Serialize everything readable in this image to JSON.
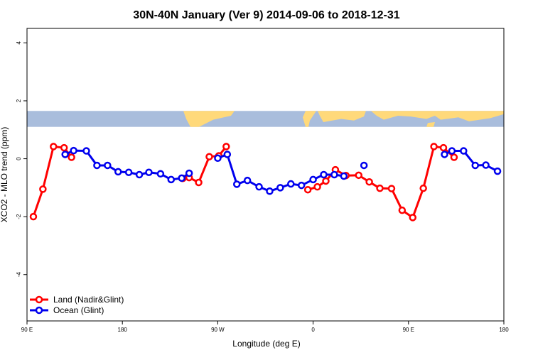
{
  "chart_data": {
    "type": "line",
    "title": "30N-40N January (Ver 9)   2014-09-06 to 2018-12-31",
    "xlabel": "Longitude (deg E)",
    "ylabel": "XCO2 - MLO trend (ppm)",
    "xlim": [
      90,
      540
    ],
    "ylim": [
      -5.6,
      4.5
    ],
    "x_ticks": [
      {
        "value": 90,
        "label": "90 E"
      },
      {
        "value": 180,
        "label": "180"
      },
      {
        "value": 270,
        "label": "90 W"
      },
      {
        "value": 360,
        "label": "0"
      },
      {
        "value": 450,
        "label": "90 E"
      },
      {
        "value": 540,
        "label": "180"
      }
    ],
    "y_ticks": [
      {
        "value": -4,
        "label": "-4"
      },
      {
        "value": -2,
        "label": "-2"
      },
      {
        "value": 0,
        "label": "0"
      },
      {
        "value": 2,
        "label": "2"
      },
      {
        "value": 4,
        "label": "4"
      }
    ],
    "grid": false,
    "legend_position": "bottom-left",
    "background_map": {
      "description_colors": {
        "land": "#FFD97A",
        "ocean": "#A9BDDC"
      },
      "y_range": [
        1.1,
        1.65
      ]
    },
    "series": [
      {
        "name": "Land (Nadir&Glint)",
        "color": "#FF0000",
        "segments": [
          [
            [
              96,
              -2.0
            ],
            [
              105,
              -1.05
            ],
            [
              115,
              0.42
            ],
            [
              125,
              0.38
            ],
            [
              132,
              0.05
            ]
          ],
          [
            [
              237,
              -0.68
            ],
            [
              243,
              -0.65
            ],
            [
              252,
              -0.82
            ],
            [
              262,
              0.07
            ],
            [
              271,
              0.1
            ],
            [
              278,
              0.42
            ]
          ],
          [
            [
              355,
              -1.07
            ],
            [
              364,
              -0.97
            ],
            [
              372,
              -0.77
            ],
            [
              381,
              -0.38
            ],
            [
              391,
              -0.58
            ],
            [
              403,
              -0.57
            ],
            [
              413,
              -0.8
            ],
            [
              423,
              -1.02
            ],
            [
              434,
              -1.03
            ],
            [
              444,
              -1.78
            ],
            [
              454,
              -2.03
            ],
            [
              464,
              -1.02
            ],
            [
              474,
              0.42
            ],
            [
              483,
              0.38
            ],
            [
              493,
              0.05
            ]
          ]
        ]
      },
      {
        "name": "Ocean (Glint)",
        "color": "#0000EE",
        "segments": [
          [
            [
              126,
              0.15
            ],
            [
              134,
              0.28
            ],
            [
              146,
              0.27
            ],
            [
              156,
              -0.23
            ],
            [
              166,
              -0.23
            ],
            [
              176,
              -0.45
            ],
            [
              186,
              -0.47
            ],
            [
              196,
              -0.55
            ],
            [
              205,
              -0.47
            ],
            [
              216,
              -0.52
            ],
            [
              226,
              -0.72
            ],
            [
              236,
              -0.67
            ],
            [
              243,
              -0.5
            ]
          ],
          [
            [
              270,
              0.02
            ],
            [
              279,
              0.15
            ],
            [
              288,
              -0.88
            ],
            [
              298,
              -0.75
            ],
            [
              309,
              -0.97
            ],
            [
              319,
              -1.12
            ],
            [
              329,
              -1.0
            ],
            [
              339,
              -0.87
            ],
            [
              349,
              -0.92
            ],
            [
              360,
              -0.72
            ],
            [
              370,
              -0.55
            ],
            [
              380,
              -0.55
            ],
            [
              389,
              -0.6
            ]
          ],
          [
            [
              408,
              -0.23
            ]
          ],
          [
            [
              484,
              0.15
            ],
            [
              491,
              0.27
            ],
            [
              502,
              0.27
            ],
            [
              513,
              -0.23
            ],
            [
              523,
              -0.22
            ],
            [
              534,
              -0.43
            ]
          ]
        ]
      }
    ]
  }
}
